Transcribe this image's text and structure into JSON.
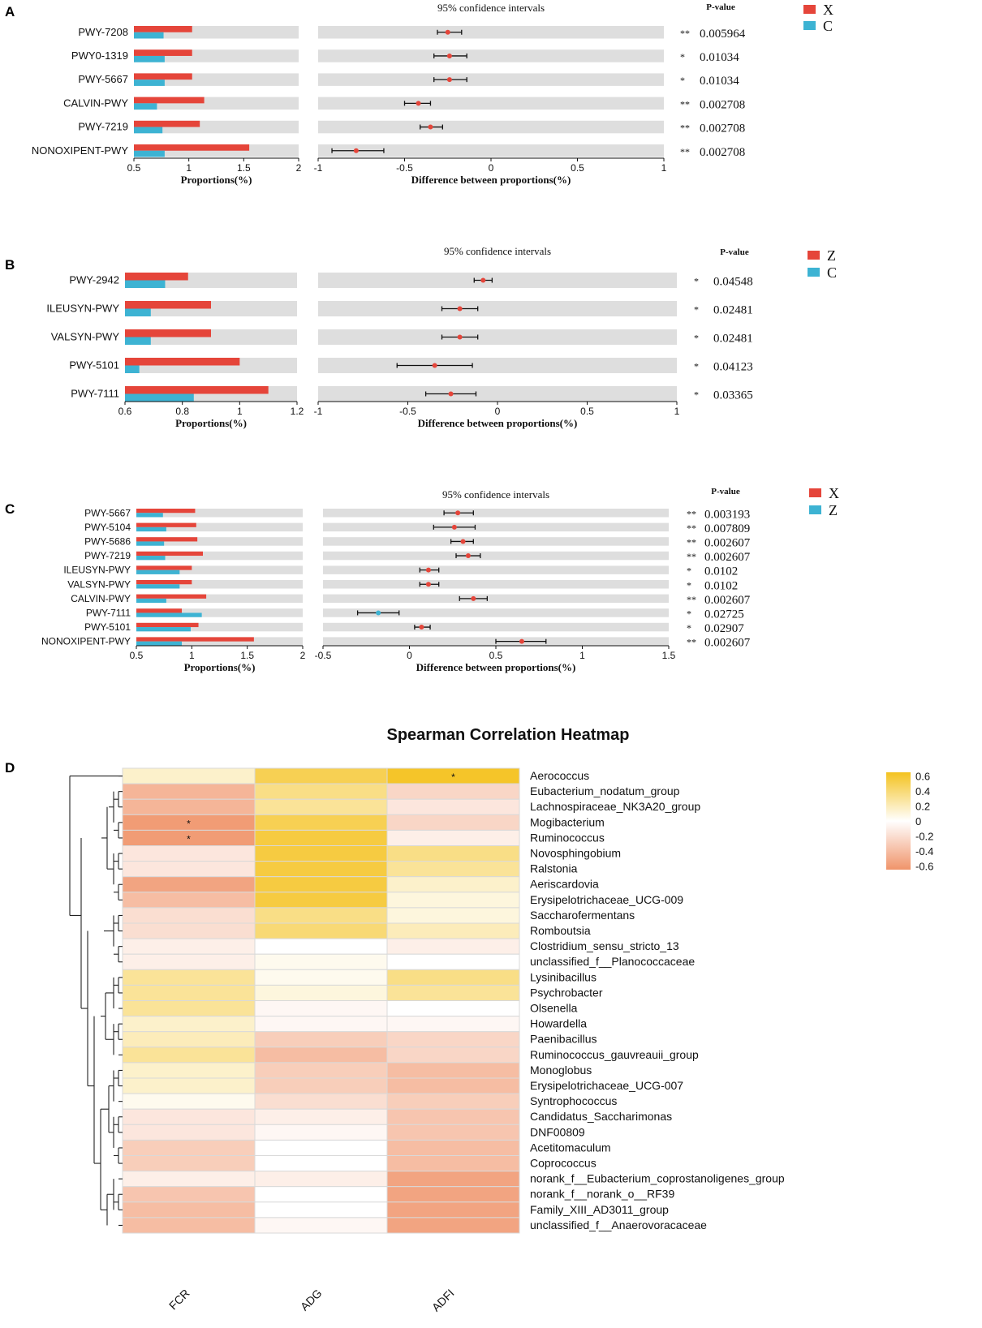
{
  "colors": {
    "group_a": "#e5453a",
    "group_b": "#3db3d3",
    "track": "#dedede",
    "heat_pos": "#f4c21f",
    "heat_zero": "#ffffff",
    "heat_neg": "#f0946a"
  },
  "chart_data": [
    {
      "panel": "A",
      "type": "bar",
      "legend": [
        "X",
        "C"
      ],
      "categories": [
        "PWY-7208",
        "PWY0-1319",
        "PWY-5667",
        "CALVIN-PWY",
        "PWY-7219",
        "NONOXIPENT-PWY"
      ],
      "series": [
        {
          "name": "X",
          "values": [
            1.03,
            1.03,
            1.03,
            1.14,
            1.1,
            1.55
          ]
        },
        {
          "name": "C",
          "values": [
            0.77,
            0.78,
            0.78,
            0.71,
            0.76,
            0.78
          ]
        }
      ],
      "xlabel": "Proportions(%)",
      "xlim": [
        0.5,
        2
      ],
      "xticks": [
        "0.5",
        "1",
        "1.5",
        "2"
      ],
      "ci_title": "95% confidence intervals",
      "ci_xlabel": "Difference between proportions(%)",
      "ci_xlim": [
        -1,
        1
      ],
      "ci_xticks": [
        "-1",
        "-0.5",
        "0",
        "0.5",
        "1"
      ],
      "diff": [
        -0.25,
        -0.24,
        -0.24,
        -0.42,
        -0.35,
        -0.78
      ],
      "ci_low": [
        -0.31,
        -0.33,
        -0.33,
        -0.5,
        -0.41,
        -0.92
      ],
      "ci_high": [
        -0.17,
        -0.14,
        -0.14,
        -0.35,
        -0.28,
        -0.62
      ],
      "pvalue_header": "P-value",
      "signif": [
        "**",
        "*",
        "*",
        "**",
        "**",
        "**"
      ],
      "pvalues": [
        "0.005964",
        "0.01034",
        "0.01034",
        "0.002708",
        "0.002708",
        "0.002708"
      ]
    },
    {
      "panel": "B",
      "type": "bar",
      "legend": [
        "Z",
        "C"
      ],
      "categories": [
        "PWY-2942",
        "ILEUSYN-PWY",
        "VALSYN-PWY",
        "PWY-5101",
        "PWY-7111"
      ],
      "series": [
        {
          "name": "Z",
          "values": [
            0.82,
            0.9,
            0.9,
            1.0,
            1.1
          ]
        },
        {
          "name": "C",
          "values": [
            0.74,
            0.69,
            0.69,
            0.65,
            0.84
          ]
        }
      ],
      "xlabel": "Proportions(%)",
      "xlim": [
        0.6,
        1.2
      ],
      "xticks": [
        "0.6",
        "0.8",
        "1",
        "1.2"
      ],
      "ci_title": "95% confidence intervals",
      "ci_xlabel": "Difference between proportions(%)",
      "ci_xlim": [
        -1,
        1
      ],
      "ci_xticks": [
        "-1",
        "-0.5",
        "0",
        "0.5",
        "1"
      ],
      "diff": [
        -0.08,
        -0.21,
        -0.21,
        -0.35,
        -0.26
      ],
      "ci_low": [
        -0.13,
        -0.31,
        -0.31,
        -0.56,
        -0.4
      ],
      "ci_high": [
        -0.03,
        -0.11,
        -0.11,
        -0.14,
        -0.12
      ],
      "pvalue_header": "P-value",
      "signif": [
        "*",
        "*",
        "*",
        "*",
        "*"
      ],
      "pvalues": [
        "0.04548",
        "0.02481",
        "0.02481",
        "0.04123",
        "0.03365"
      ]
    },
    {
      "panel": "C",
      "type": "bar",
      "legend": [
        "X",
        "Z"
      ],
      "categories": [
        "PWY-5667",
        "PWY-5104",
        "PWY-5686",
        "PWY-7219",
        "ILEUSYN-PWY",
        "VALSYN-PWY",
        "CALVIN-PWY",
        "PWY-7111",
        "PWY-5101",
        "NONOXIPENT-PWY"
      ],
      "series": [
        {
          "name": "X",
          "values": [
            1.03,
            1.04,
            1.05,
            1.1,
            1.0,
            1.0,
            1.13,
            0.91,
            1.06,
            1.56
          ]
        },
        {
          "name": "Z",
          "values": [
            0.74,
            0.77,
            0.75,
            0.76,
            0.89,
            0.89,
            0.77,
            1.09,
            0.99,
            0.91
          ]
        }
      ],
      "xlabel": "Proportions(%)",
      "xlim": [
        0.5,
        2
      ],
      "xticks": [
        "0.5",
        "1",
        "1.5",
        "2"
      ],
      "ci_title": "95% confidence intervals",
      "ci_xlabel": "Difference between proportions(%)",
      "ci_xlim": [
        -0.5,
        1.5
      ],
      "ci_xticks": [
        "-0.5",
        "0",
        "0.5",
        "1",
        "1.5"
      ],
      "diff": [
        0.28,
        0.26,
        0.31,
        0.34,
        0.11,
        0.11,
        0.37,
        -0.18,
        0.07,
        0.65
      ],
      "ci_low": [
        0.2,
        0.14,
        0.24,
        0.27,
        0.06,
        0.06,
        0.29,
        -0.3,
        0.03,
        0.5
      ],
      "ci_high": [
        0.37,
        0.38,
        0.37,
        0.41,
        0.17,
        0.17,
        0.45,
        -0.06,
        0.12,
        0.79
      ],
      "pvalue_header": "P-value",
      "signif": [
        "**",
        "**",
        "**",
        "**",
        "*",
        "*",
        "**",
        "*",
        "*",
        "**"
      ],
      "pvalues": [
        "0.003193",
        "0.007809",
        "0.002607",
        "0.002607",
        "0.0102",
        "0.0102",
        "0.002607",
        "0.02725",
        "0.02907",
        "0.002607"
      ]
    },
    {
      "panel": "D",
      "type": "heatmap",
      "title": "Spearman Correlation Heatmap",
      "columns": [
        "FCR",
        "ADG",
        "ADFI"
      ],
      "rows": [
        "Aerococcus",
        "Eubacterium_nodatum_group",
        "Lachnospiraceae_NK3A20_group",
        "Mogibacterium",
        "Ruminococcus",
        "Novosphingobium",
        "Ralstonia",
        "Aeriscardovia",
        "Erysipelotrichaceae_UCG-009",
        "Saccharofermentans",
        "Romboutsia",
        "Clostridium_sensu_stricto_13",
        "unclassified_f__Planococcaceae",
        "Lysinibacillus",
        "Psychrobacter",
        "Olsenella",
        "Howardella",
        "Paenibacillus",
        "Ruminococcus_gauvreauii_group",
        "Monoglobus",
        "Erysipelotrichaceae_UCG-007",
        "Syntrophococcus",
        "Candidatus_Saccharimonas",
        "DNF00809",
        "Acetitomaculum",
        "Coprococcus",
        "norank_f__Eubacterium_coprostanoligenes_group",
        "norank_f__norank_o__RF39",
        "Family_XIII_AD3011_group",
        "unclassified_f__Anaerovoracaceae"
      ],
      "values": [
        [
          0.15,
          0.5,
          0.62
        ],
        [
          -0.45,
          0.35,
          -0.25
        ],
        [
          -0.45,
          0.3,
          -0.15
        ],
        [
          -0.6,
          0.5,
          -0.25
        ],
        [
          -0.6,
          0.55,
          -0.1
        ],
        [
          -0.15,
          0.55,
          0.35
        ],
        [
          -0.15,
          0.55,
          0.3
        ],
        [
          -0.55,
          0.55,
          0.15
        ],
        [
          -0.4,
          0.55,
          0.1
        ],
        [
          -0.2,
          0.35,
          0.1
        ],
        [
          -0.2,
          0.4,
          0.2
        ],
        [
          -0.1,
          0.0,
          -0.1
        ],
        [
          -0.1,
          0.05,
          0.0
        ],
        [
          0.3,
          0.05,
          0.35
        ],
        [
          0.3,
          0.1,
          0.3
        ],
        [
          0.3,
          -0.05,
          0.0
        ],
        [
          0.15,
          -0.05,
          -0.05
        ],
        [
          0.2,
          -0.3,
          -0.25
        ],
        [
          0.3,
          -0.4,
          -0.25
        ],
        [
          0.15,
          -0.3,
          -0.4
        ],
        [
          0.15,
          -0.3,
          -0.4
        ],
        [
          0.05,
          -0.2,
          -0.3
        ],
        [
          -0.15,
          -0.1,
          -0.35
        ],
        [
          -0.15,
          -0.05,
          -0.35
        ],
        [
          -0.3,
          0.0,
          -0.4
        ],
        [
          -0.3,
          0.0,
          -0.4
        ],
        [
          -0.1,
          -0.1,
          -0.55
        ],
        [
          -0.35,
          0.0,
          -0.55
        ],
        [
          -0.4,
          0.0,
          -0.55
        ],
        [
          -0.4,
          -0.05,
          -0.55
        ]
      ],
      "stars": [
        {
          "row": 0,
          "col": 2,
          "label": "*"
        },
        {
          "row": 3,
          "col": 0,
          "label": "*"
        },
        {
          "row": 4,
          "col": 0,
          "label": "*"
        }
      ],
      "colorbar": {
        "ticks": [
          "0.6",
          "0.4",
          "0.2",
          "0",
          "-0.2",
          "-0.4",
          "-0.6"
        ],
        "range": [
          -0.65,
          0.65
        ]
      }
    }
  ]
}
